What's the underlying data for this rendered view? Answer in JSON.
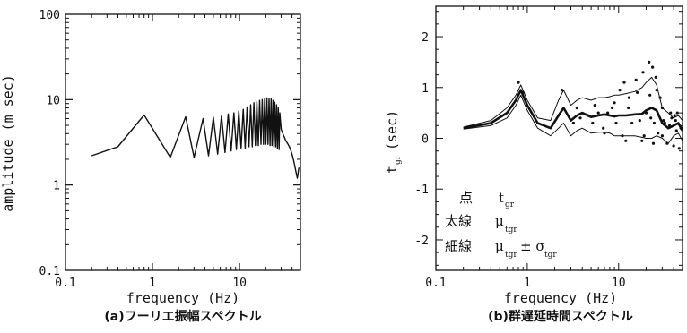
{
  "chart_data": [
    {
      "type": "line",
      "caption": "(a)フーリエ振幅スペクトル",
      "xlabel": "frequency (Hz)",
      "ylabel": "amplitude (m sec)",
      "xscale": "log",
      "yscale": "log",
      "xlim": [
        0.1,
        50
      ],
      "ylim": [
        0.1,
        100
      ],
      "xticks": [
        "0.1",
        "1",
        "10"
      ],
      "yticks": [
        "0.1",
        "1",
        "10",
        "100"
      ],
      "series": [
        {
          "x": [
            0.2,
            0.4,
            0.8,
            1.6,
            2.4,
            3.0,
            3.8,
            4.4,
            5.0,
            5.6,
            6.2,
            6.8,
            7.4,
            8.0,
            8.6,
            9.2,
            9.8,
            10.4,
            11.0,
            11.6,
            12.2,
            12.8,
            13.4,
            14.0,
            14.6,
            15.2,
            15.8,
            16.4,
            17.0,
            17.6,
            18.2,
            18.8,
            19.4,
            20.0,
            20.6,
            21.2,
            21.8,
            22.4,
            23.0,
            23.6,
            24.2,
            24.8,
            25.4,
            26.0,
            26.6,
            27.2,
            27.8,
            28.4,
            29.0,
            30.0,
            32.0,
            34.0,
            36.0,
            38.0,
            40.0,
            42.0,
            44.0,
            46.0,
            48.0
          ],
          "y": [
            2.2,
            2.8,
            6.6,
            2.1,
            6.3,
            2.1,
            6.0,
            2.2,
            6.2,
            2.3,
            6.5,
            2.4,
            6.8,
            2.5,
            7.0,
            2.6,
            7.4,
            2.7,
            7.7,
            2.7,
            8.2,
            2.8,
            8.7,
            2.8,
            9.2,
            2.9,
            9.5,
            2.9,
            9.8,
            3.0,
            10.0,
            3.0,
            10.3,
            3.0,
            10.5,
            3.0,
            10.4,
            2.9,
            10.2,
            2.9,
            9.8,
            2.8,
            9.3,
            2.8,
            8.7,
            2.7,
            8.0,
            2.6,
            7.0,
            4.5,
            3.8,
            3.3,
            3.0,
            2.7,
            2.3,
            1.9,
            1.5,
            1.2,
            1.6
          ]
        }
      ]
    },
    {
      "type": "scatter",
      "caption": "(b)群遅延時間スペクトル",
      "xlabel": "frequency (Hz)",
      "ylabel": "t",
      "ylabel_sub": "gr",
      "ylabel_unit": "(sec)",
      "xscale": "log",
      "xlim": [
        0.1,
        50
      ],
      "ylim": [
        -2.6,
        2.6
      ],
      "xticks": [
        "0.1",
        "1",
        "10"
      ],
      "yticks": [
        "-2",
        "-1",
        "0",
        "1",
        "2"
      ],
      "legend": [
        {
          "label": "点",
          "symbol": "t",
          "sub": "gr",
          "extra": ""
        },
        {
          "label": "太線",
          "symbol": "μ",
          "sub": "tgr",
          "extra": ""
        },
        {
          "label": "細線",
          "symbol": "μ",
          "sub": "tgr",
          "extra": "± σ",
          "extra_sub": "tgr"
        }
      ],
      "series": [
        {
          "name": "mean",
          "style": "thick",
          "x": [
            0.2,
            0.4,
            0.6,
            0.75,
            0.85,
            1.0,
            1.3,
            1.8,
            2.2,
            2.5,
            3.0,
            3.5,
            4.0,
            5.0,
            6.0,
            7.0,
            8.0,
            9.0,
            10.0,
            12.0,
            15.0,
            18.0,
            20.0,
            23.0,
            26.0,
            30.0,
            35.0,
            40.0,
            45.0,
            50.0
          ],
          "y": [
            0.2,
            0.3,
            0.5,
            0.75,
            0.95,
            0.65,
            0.3,
            0.2,
            0.45,
            0.6,
            0.35,
            0.45,
            0.5,
            0.42,
            0.45,
            0.47,
            0.45,
            0.43,
            0.45,
            0.45,
            0.47,
            0.48,
            0.55,
            0.6,
            0.55,
            0.3,
            0.2,
            0.25,
            0.3,
            0.15
          ]
        },
        {
          "name": "mean+sigma",
          "style": "thin",
          "x": [
            0.2,
            0.4,
            0.6,
            0.75,
            0.85,
            1.0,
            1.3,
            1.8,
            2.2,
            2.5,
            3.0,
            3.5,
            4.0,
            5.0,
            6.0,
            7.0,
            8.0,
            9.0,
            10.0,
            12.0,
            15.0,
            18.0,
            20.0,
            23.0,
            26.0,
            30.0,
            35.0,
            40.0,
            45.0,
            50.0
          ],
          "y": [
            0.22,
            0.35,
            0.6,
            0.85,
            1.05,
            0.75,
            0.4,
            0.35,
            0.75,
            0.95,
            0.65,
            0.75,
            0.8,
            0.75,
            0.8,
            0.8,
            0.82,
            0.85,
            0.85,
            0.88,
            0.92,
            1.0,
            1.1,
            1.2,
            1.05,
            0.6,
            0.5,
            0.4,
            0.45,
            0.35
          ]
        },
        {
          "name": "mean-sigma",
          "style": "thin",
          "x": [
            0.2,
            0.4,
            0.6,
            0.75,
            0.85,
            1.0,
            1.3,
            1.8,
            2.2,
            2.5,
            3.0,
            3.5,
            4.0,
            5.0,
            6.0,
            7.0,
            8.0,
            9.0,
            10.0,
            12.0,
            15.0,
            18.0,
            20.0,
            23.0,
            26.0,
            30.0,
            35.0,
            40.0,
            45.0,
            50.0
          ],
          "y": [
            0.18,
            0.25,
            0.4,
            0.65,
            0.85,
            0.55,
            0.2,
            0.05,
            0.2,
            0.3,
            0.05,
            0.15,
            0.2,
            0.1,
            0.12,
            0.12,
            0.1,
            0.05,
            0.05,
            0.05,
            0.05,
            0.02,
            0.0,
            0.0,
            0.05,
            0.0,
            -0.1,
            0.05,
            0.1,
            -0.05
          ]
        },
        {
          "name": "points",
          "style": "dots",
          "x": [
            0.8,
            0.9,
            2.4,
            3.2,
            3.8,
            4.6,
            5.2,
            6.0,
            6.8,
            7.6,
            8.5,
            9.4,
            10.3,
            11.5,
            12.8,
            14.0,
            15.5,
            17.0,
            18.5,
            20.0,
            21.5,
            22.5,
            23.5,
            24.5,
            25.5,
            27.0,
            28.5,
            30.0,
            32.0,
            34.0,
            36.0,
            38.0,
            40.0,
            42.0,
            44.0,
            46.0,
            48.0,
            3.5,
            5.5,
            7.0,
            9.0,
            11.0,
            13.0,
            16.0,
            19.0,
            22.0,
            26.0,
            31.0,
            37.0,
            43.0,
            12.0,
            18.0,
            24.0,
            30.0,
            41.0
          ],
          "y": [
            1.1,
            0.9,
            0.95,
            0.3,
            0.4,
            0.45,
            0.3,
            0.5,
            0.2,
            0.5,
            0.6,
            0.3,
            0.95,
            1.1,
            0.6,
            0.3,
            1.15,
            0.35,
            1.3,
            0.5,
            1.5,
            0.4,
            1.4,
            0.3,
            1.2,
            0.1,
            0.8,
            0.05,
            0.3,
            -0.1,
            0.25,
            0.4,
            -0.15,
            0.35,
            0.5,
            -0.2,
            0.2,
            0.6,
            0.65,
            0.1,
            0.7,
            0.05,
            0.8,
            0.9,
            0.05,
            0.85,
            0.95,
            0.35,
            0.5,
            0.15,
            -0.05,
            -0.05,
            -0.1,
            0.6,
            0.45
          ]
        }
      ]
    }
  ]
}
